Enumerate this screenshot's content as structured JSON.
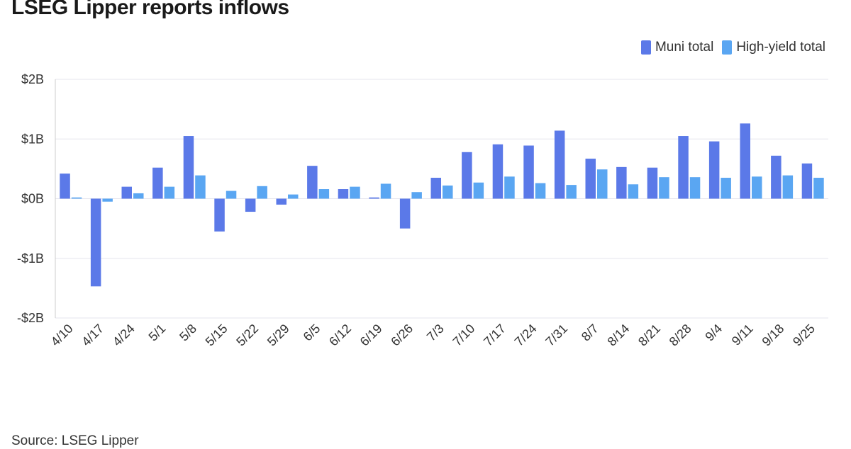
{
  "title": "LSEG Lipper reports inflows",
  "source": "Source: LSEG Lipper",
  "colors": {
    "muni": "#5b79e8",
    "high_yield": "#5aa6f2",
    "grid": "#e6e6ee",
    "axis": "#cccccc"
  },
  "chart_data": {
    "type": "bar",
    "title": "LSEG Lipper reports inflows",
    "xlabel": "",
    "ylabel": "",
    "ylim": [
      -2,
      2
    ],
    "yticks": [
      "$2B",
      "$1B",
      "$0B",
      "-$1B",
      "-$2B"
    ],
    "ytick_values": [
      2,
      1,
      0,
      -1,
      -2
    ],
    "grid": true,
    "legend_position": "top-right",
    "categories": [
      "4/10",
      "4/17",
      "4/24",
      "5/1",
      "5/8",
      "5/15",
      "5/22",
      "5/29",
      "6/5",
      "6/12",
      "6/19",
      "6/26",
      "7/3",
      "7/10",
      "7/17",
      "7/24",
      "7/31",
      "8/7",
      "8/14",
      "8/21",
      "8/28",
      "9/4",
      "9/11",
      "9/18",
      "9/25"
    ],
    "series": [
      {
        "name": "Muni total",
        "values": [
          0.42,
          -1.47,
          0.2,
          0.52,
          1.05,
          -0.55,
          -0.22,
          -0.1,
          0.55,
          0.16,
          0.02,
          -0.5,
          0.35,
          0.78,
          0.91,
          0.89,
          1.14,
          0.67,
          0.53,
          0.52,
          1.05,
          0.96,
          1.26,
          0.72,
          0.59
        ]
      },
      {
        "name": "High-yield total",
        "values": [
          0.02,
          -0.05,
          0.09,
          0.2,
          0.39,
          0.13,
          0.21,
          0.07,
          0.16,
          0.2,
          0.25,
          0.11,
          0.22,
          0.27,
          0.37,
          0.26,
          0.23,
          0.49,
          0.24,
          0.36,
          0.36,
          0.35,
          0.37,
          0.39,
          0.35
        ]
      }
    ]
  }
}
